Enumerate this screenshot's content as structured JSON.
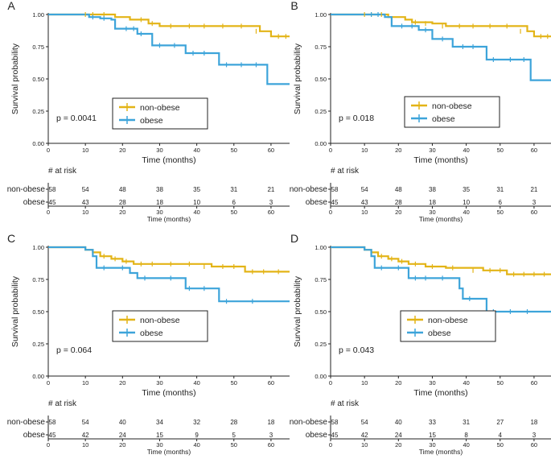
{
  "colors": {
    "nonobese": "#E3B417",
    "obese": "#3DA4DA",
    "axis": "#222222"
  },
  "chart_data": [
    {
      "type": "line",
      "panel": "A",
      "xlabel": "Time (months)",
      "ylabel": "Survival probability",
      "xlim": [
        0,
        65
      ],
      "ylim": [
        0,
        1
      ],
      "xticks": [
        0,
        10,
        20,
        30,
        40,
        50,
        60
      ],
      "yticks": [
        "0.00",
        "0.25",
        "0.50",
        "0.75",
        "1.00"
      ],
      "pvalue": "p = 0.0041",
      "legend": [
        "non-obese",
        "obese"
      ],
      "series": [
        {
          "name": "non-obese",
          "x": [
            0,
            18,
            20,
            22,
            24,
            27,
            30,
            35,
            40,
            45,
            50,
            55,
            57,
            59,
            60,
            65
          ],
          "y": [
            1,
            0.98,
            0.98,
            0.96,
            0.96,
            0.93,
            0.91,
            0.91,
            0.91,
            0.91,
            0.91,
            0.91,
            0.87,
            0.87,
            0.83,
            0.83
          ]
        },
        {
          "name": "obese",
          "x": [
            0,
            9,
            11,
            14,
            17,
            18,
            20,
            22,
            24,
            26,
            28,
            32,
            37,
            40,
            44,
            46,
            50,
            55,
            59,
            65
          ],
          "y": [
            1,
            1,
            0.98,
            0.97,
            0.96,
            0.89,
            0.89,
            0.89,
            0.85,
            0.85,
            0.76,
            0.76,
            0.7,
            0.7,
            0.7,
            0.61,
            0.61,
            0.61,
            0.46,
            0.46
          ]
        },
        {
          "name": "censor-nonobese",
          "x": [
            10,
            12,
            15,
            25,
            28,
            33,
            38,
            42,
            47,
            52,
            56,
            62,
            64
          ],
          "y": [
            1,
            1,
            1,
            0.96,
            0.93,
            0.91,
            0.91,
            0.91,
            0.91,
            0.91,
            0.87,
            0.83,
            0.83
          ]
        },
        {
          "name": "censor-obese",
          "x": [
            12,
            15,
            21,
            23,
            25,
            30,
            34,
            39,
            42,
            48,
            52,
            56
          ],
          "y": [
            0.98,
            0.97,
            0.89,
            0.89,
            0.85,
            0.76,
            0.76,
            0.7,
            0.7,
            0.61,
            0.61,
            0.61
          ]
        }
      ],
      "risk": {
        "title": "# at risk",
        "rows": [
          {
            "label": "non-obese",
            "values": [
              "58",
              "54",
              "48",
              "38",
              "35",
              "31",
              "21"
            ]
          },
          {
            "label": "obese",
            "values": [
              "45",
              "43",
              "28",
              "18",
              "10",
              "6",
              "3"
            ]
          }
        ]
      }
    },
    {
      "type": "line",
      "panel": "B",
      "xlabel": "Time (months)",
      "ylabel": "Survival probability",
      "xlim": [
        0,
        65
      ],
      "ylim": [
        0,
        1
      ],
      "xticks": [
        0,
        10,
        20,
        30,
        40,
        50,
        60
      ],
      "yticks": [
        "0.00",
        "0.25",
        "0.50",
        "0.75",
        "1.00"
      ],
      "pvalue": "p = 0.018",
      "legend": [
        "non-obese",
        "obese"
      ],
      "series": [
        {
          "name": "non-obese",
          "x": [
            0,
            17,
            19,
            22,
            24,
            26,
            30,
            34,
            40,
            45,
            50,
            55,
            58,
            60,
            65
          ],
          "y": [
            1,
            0.98,
            0.98,
            0.96,
            0.94,
            0.94,
            0.93,
            0.91,
            0.91,
            0.91,
            0.91,
            0.91,
            0.87,
            0.83,
            0.83
          ]
        },
        {
          "name": "obese",
          "x": [
            0,
            16,
            18,
            22,
            26,
            30,
            36,
            40,
            44,
            46,
            50,
            55,
            59,
            65
          ],
          "y": [
            1,
            0.98,
            0.91,
            0.91,
            0.88,
            0.81,
            0.75,
            0.75,
            0.75,
            0.65,
            0.65,
            0.65,
            0.49,
            0.49
          ]
        },
        {
          "name": "censor-nonobese",
          "x": [
            10,
            12,
            15,
            25,
            28,
            33,
            38,
            42,
            47,
            52,
            56,
            62,
            64
          ],
          "y": [
            1,
            1,
            1,
            0.94,
            0.93,
            0.91,
            0.91,
            0.91,
            0.91,
            0.91,
            0.87,
            0.83,
            0.83
          ]
        },
        {
          "name": "censor-obese",
          "x": [
            12,
            14,
            21,
            24,
            28,
            33,
            39,
            42,
            48,
            53,
            57
          ],
          "y": [
            1,
            1,
            0.91,
            0.91,
            0.88,
            0.81,
            0.75,
            0.75,
            0.65,
            0.65,
            0.65
          ]
        }
      ],
      "risk": {
        "title": "# at risk",
        "rows": [
          {
            "label": "non-obese",
            "values": [
              "58",
              "54",
              "48",
              "38",
              "35",
              "31",
              "21"
            ]
          },
          {
            "label": "obese",
            "values": [
              "45",
              "43",
              "28",
              "18",
              "10",
              "6",
              "3"
            ]
          }
        ]
      }
    },
    {
      "type": "line",
      "panel": "C",
      "xlabel": "Time (months)",
      "ylabel": "Survival probability",
      "xlim": [
        0,
        65
      ],
      "ylim": [
        0,
        1
      ],
      "xticks": [
        0,
        10,
        20,
        30,
        40,
        50,
        60
      ],
      "yticks": [
        "0.00",
        "0.25",
        "0.50",
        "0.75",
        "1.00"
      ],
      "pvalue": "p = 0.064",
      "legend": [
        "non-obese",
        "obese"
      ],
      "series": [
        {
          "name": "non-obese",
          "x": [
            0,
            10,
            12,
            14,
            17,
            20,
            23,
            30,
            35,
            40,
            44,
            50,
            53,
            60,
            65
          ],
          "y": [
            1,
            0.98,
            0.96,
            0.93,
            0.91,
            0.89,
            0.87,
            0.87,
            0.87,
            0.87,
            0.85,
            0.85,
            0.81,
            0.81,
            0.81
          ]
        },
        {
          "name": "obese",
          "x": [
            0,
            10,
            12,
            13,
            18,
            22,
            24,
            30,
            37,
            40,
            46,
            50,
            55,
            60,
            65
          ],
          "y": [
            1,
            0.98,
            0.93,
            0.84,
            0.84,
            0.8,
            0.76,
            0.76,
            0.68,
            0.68,
            0.58,
            0.58,
            0.58,
            0.58,
            0.58
          ]
        },
        {
          "name": "censor-nonobese",
          "x": [
            15,
            18,
            21,
            25,
            28,
            33,
            38,
            42,
            47,
            50,
            55,
            58,
            62
          ],
          "y": [
            0.93,
            0.91,
            0.89,
            0.87,
            0.87,
            0.87,
            0.87,
            0.85,
            0.85,
            0.85,
            0.81,
            0.81,
            0.81
          ]
        },
        {
          "name": "censor-obese",
          "x": [
            15,
            20,
            26,
            33,
            38,
            42,
            48,
            55
          ],
          "y": [
            0.84,
            0.84,
            0.76,
            0.76,
            0.68,
            0.68,
            0.58,
            0.58
          ]
        }
      ],
      "risk": {
        "title": "# at risk",
        "rows": [
          {
            "label": "non-obese",
            "values": [
              "58",
              "54",
              "40",
              "34",
              "32",
              "28",
              "18"
            ]
          },
          {
            "label": "obese",
            "values": [
              "45",
              "42",
              "24",
              "15",
              "9",
              "5",
              "3"
            ]
          }
        ]
      }
    },
    {
      "type": "line",
      "panel": "D",
      "xlabel": "Time (months)",
      "ylabel": "Survival probability",
      "xlim": [
        0,
        65
      ],
      "ylim": [
        0,
        1
      ],
      "xticks": [
        0,
        10,
        20,
        30,
        40,
        50,
        60
      ],
      "yticks": [
        "0.00",
        "0.25",
        "0.50",
        "0.75",
        "1.00"
      ],
      "pvalue": "p = 0.043",
      "legend": [
        "non-obese",
        "obese"
      ],
      "series": [
        {
          "name": "non-obese",
          "x": [
            0,
            10,
            12,
            14,
            17,
            20,
            23,
            28,
            34,
            40,
            45,
            50,
            52,
            60,
            65
          ],
          "y": [
            1,
            0.98,
            0.96,
            0.93,
            0.91,
            0.89,
            0.87,
            0.85,
            0.84,
            0.84,
            0.82,
            0.82,
            0.79,
            0.79,
            0.79
          ]
        },
        {
          "name": "obese",
          "x": [
            0,
            10,
            12,
            13,
            18,
            23,
            30,
            35,
            38,
            39,
            40,
            46,
            50,
            55,
            60,
            65
          ],
          "y": [
            1,
            0.98,
            0.93,
            0.84,
            0.84,
            0.76,
            0.76,
            0.76,
            0.68,
            0.6,
            0.6,
            0.5,
            0.5,
            0.5,
            0.5,
            0.5
          ]
        },
        {
          "name": "censor-nonobese",
          "x": [
            15,
            18,
            21,
            25,
            30,
            36,
            42,
            47,
            50,
            54,
            57,
            60,
            63
          ],
          "y": [
            0.93,
            0.91,
            0.89,
            0.87,
            0.85,
            0.84,
            0.82,
            0.82,
            0.82,
            0.79,
            0.79,
            0.79,
            0.79
          ]
        },
        {
          "name": "censor-obese",
          "x": [
            15,
            20,
            25,
            28,
            33,
            41,
            48,
            53,
            58
          ],
          "y": [
            0.84,
            0.84,
            0.76,
            0.76,
            0.76,
            0.6,
            0.5,
            0.5,
            0.5
          ]
        }
      ],
      "risk": {
        "title": "# at risk",
        "rows": [
          {
            "label": "non-obese",
            "values": [
              "58",
              "54",
              "40",
              "33",
              "31",
              "27",
              "18"
            ]
          },
          {
            "label": "obese",
            "values": [
              "45",
              "42",
              "24",
              "15",
              "8",
              "4",
              "3"
            ]
          }
        ]
      }
    }
  ]
}
